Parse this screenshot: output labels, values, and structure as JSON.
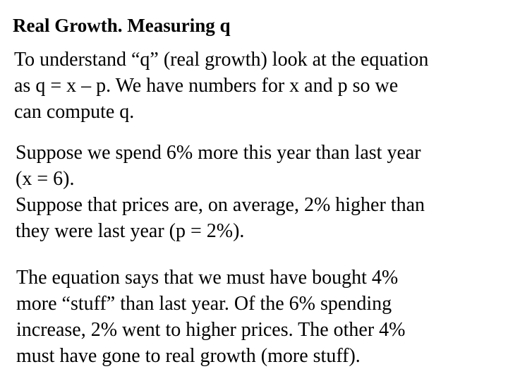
{
  "slide": {
    "title": "Real Growth. Measuring q",
    "paragraphs": [
      {
        "lines": [
          "To understand “q” (real growth) look at the equation",
          "as q = x – p. We have numbers for x and p so we",
          "can compute q."
        ]
      },
      {
        "lines": [
          "Suppose we spend 6% more this year than last year",
          "(x = 6).",
          "Suppose that prices are, on average, 2% higher than",
          "they were last year (p = 2%)."
        ]
      },
      {
        "lines": [
          "The equation says that we must have bought 4%",
          "more “stuff” than last year. Of the 6% spending",
          "increase, 2% went to higher prices. The other 4%",
          "must have gone to real growth (more stuff)."
        ]
      }
    ]
  }
}
